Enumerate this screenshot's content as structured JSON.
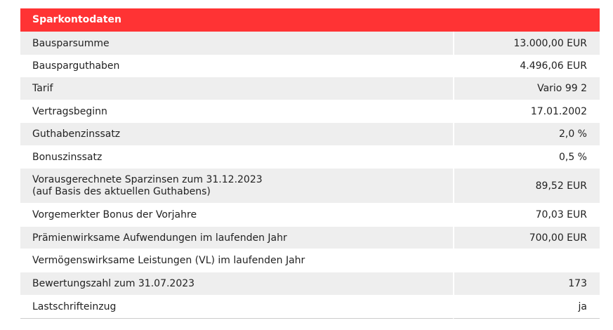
{
  "header": {
    "title": "Sparkontodaten"
  },
  "rows": [
    {
      "label": "Bausparsumme",
      "value": "13.000,00 EUR"
    },
    {
      "label": "Bausparguthaben",
      "value": "4.496,06 EUR"
    },
    {
      "label": "Tarif",
      "value": "Vario 99 2"
    },
    {
      "label": "Vertragsbeginn",
      "value": "17.01.2002"
    },
    {
      "label": "Guthabenzinssatz",
      "value": "2,0 %"
    },
    {
      "label": "Bonuszinssatz",
      "value": "0,5 %"
    },
    {
      "label_line1": "Vorausgerechnete Sparzinsen zum 31.12.2023",
      "label_line2": "(auf Basis des aktuellen Guthabens)",
      "value": "89,52 EUR"
    },
    {
      "label": "Vorgemerkter Bonus der Vorjahre",
      "value": "70,03 EUR"
    },
    {
      "label": "Prämienwirksame Aufwendungen im laufenden Jahr",
      "value": "700,00 EUR"
    },
    {
      "label": "Vermögenswirksame Leistungen (VL) im laufenden Jahr",
      "value": ""
    },
    {
      "label": "Bewertungszahl zum 31.07.2023",
      "value": "173"
    },
    {
      "label": "Lastschrifteinzug",
      "value": "ja"
    }
  ]
}
